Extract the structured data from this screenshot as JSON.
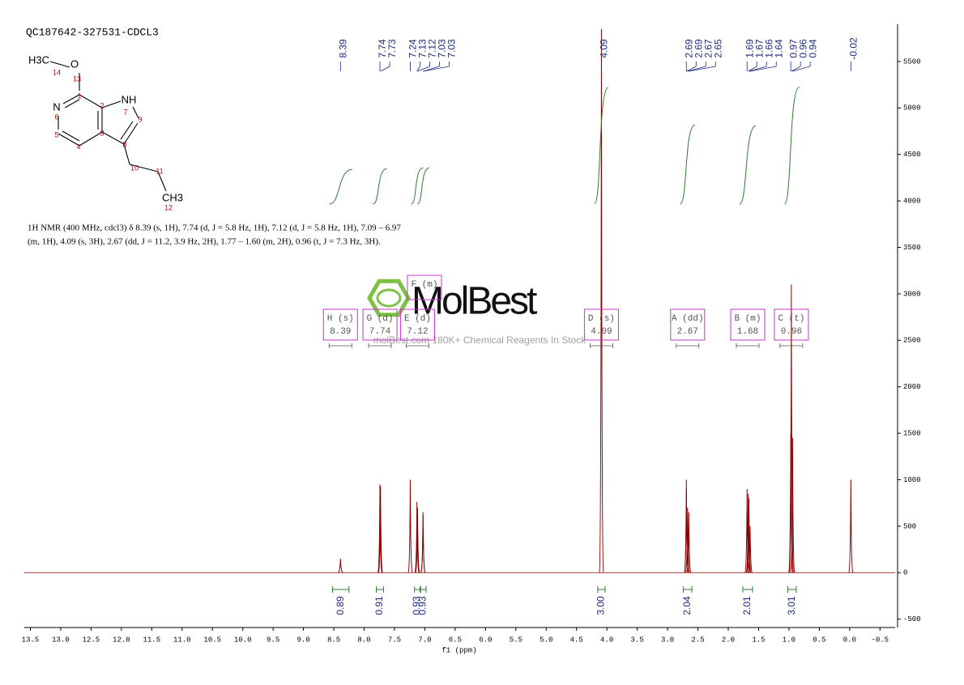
{
  "chart_data": {
    "type": "nmr",
    "title": "QC187642-327531-CDCL3",
    "description": [
      "1H NMR (400 MHz, cdcl3) δ 8.39 (s, 1H), 7.74 (d, J = 5.8 Hz, 1H), 7.12 (d, J = 5.8 Hz, 1H), 7.09 – 6.97",
      "(m, 1H), 4.09 (s, 3H), 2.67 (dd, J = 11.2, 3.9 Hz, 2H), 1.77 – 1.60 (m, 2H), 0.96 (t, J = 7.3 Hz, 3H)."
    ],
    "xlabel": "f1 (ppm)",
    "xlim": [
      13.6,
      -0.75
    ],
    "ylim": [
      -590,
      5900
    ],
    "xticks": [
      13.5,
      {
        "value": 13,
        "label": "13.0"
      },
      12.5,
      {
        "value": 12,
        "label": "12.0"
      },
      11.5,
      {
        "value": 11,
        "label": "11.0"
      },
      10.5,
      {
        "value": 10,
        "label": "10.0"
      },
      9.5,
      {
        "value": 9,
        "label": "9.0"
      },
      8.5,
      {
        "value": 8,
        "label": "8.0"
      },
      7.5,
      {
        "value": 7,
        "label": "7.0"
      },
      6.5,
      {
        "value": 6,
        "label": "6.0"
      },
      5.5,
      {
        "value": 5,
        "label": "5.0"
      },
      4.5,
      {
        "value": 4,
        "label": "4.0"
      },
      3.5,
      {
        "value": 3,
        "label": "3.0"
      },
      2.5,
      {
        "value": 2,
        "label": "2.0"
      },
      1.5,
      {
        "value": 1,
        "label": "1.0"
      },
      0.5,
      {
        "value": 0,
        "label": "0.0"
      },
      -0.5
    ],
    "yticks": [
      -500,
      0,
      500,
      1000,
      1500,
      2000,
      2500,
      3000,
      3500,
      4000,
      4500,
      5000,
      5500
    ],
    "series": [
      {
        "name": "spectrum",
        "color": "#8b0000",
        "x": [
          8.39,
          7.74,
          7.73,
          7.24,
          7.13,
          7.12,
          7.03,
          7.03,
          4.09,
          2.69,
          2.69,
          2.67,
          2.65,
          1.69,
          1.67,
          1.66,
          1.64,
          0.97,
          0.96,
          0.94,
          -0.02
        ],
        "values": [
          150,
          950,
          930,
          1000,
          760,
          700,
          650,
          620,
          5850,
          1000,
          900,
          700,
          650,
          900,
          850,
          800,
          500,
          1500,
          3100,
          1450,
          1000
        ]
      }
    ],
    "peak_label_color": "#1c2a80",
    "integrals": {
      "color": "#2e7d32",
      "ranges": [
        [
          8.52,
          8.25
        ],
        [
          7.8,
          7.68
        ],
        [
          7.17,
          7.08
        ],
        [
          7.07,
          6.98
        ],
        [
          4.15,
          4.03
        ],
        [
          2.74,
          2.6
        ],
        [
          1.76,
          1.6
        ],
        [
          1.02,
          0.88
        ]
      ],
      "values": [
        0.89,
        0.91,
        0.93,
        0.93,
        3,
        2.04,
        2.01,
        3.01
      ],
      "value_labels": [
        "0.89",
        "0.91",
        "0.93",
        "0.93",
        "3.00",
        "2.04",
        "2.01",
        "3.01"
      ]
    },
    "multiplets": {
      "color": "#cc33cc",
      "items": [
        {
          "label": "H (s)",
          "shift": 8.39
        },
        {
          "label": "G (d)",
          "shift": 7.74
        },
        {
          "label": "F (m)"
        },
        {
          "label": "E (d)",
          "shift": 7.12
        },
        {
          "label": "D (s)",
          "shift": 4.09
        },
        {
          "label": "A (dd)",
          "shift": 2.67
        },
        {
          "label": "B (m)",
          "shift": 1.68
        },
        {
          "label": "C (t)",
          "shift": 0.96
        }
      ]
    },
    "watermark": {
      "name": "MolBest",
      "tagline": "molBest.com 180K+ Chemical Reagents In Stock"
    }
  },
  "structure": {
    "atoms": [
      {
        "label": "H3C"
      },
      {
        "label": "O"
      },
      {
        "label": "14"
      },
      {
        "label": "13"
      },
      {
        "label": "1"
      },
      {
        "label": "N"
      },
      {
        "label": "NH"
      },
      {
        "label": "2"
      },
      {
        "label": "7"
      },
      {
        "label": "9"
      },
      {
        "label": "6"
      },
      {
        "label": "3"
      },
      {
        "label": "5"
      },
      {
        "label": "4"
      },
      {
        "label": "8"
      },
      {
        "label": "10"
      },
      {
        "label": "11"
      },
      {
        "label": "CH3"
      },
      {
        "label": "12"
      }
    ]
  }
}
